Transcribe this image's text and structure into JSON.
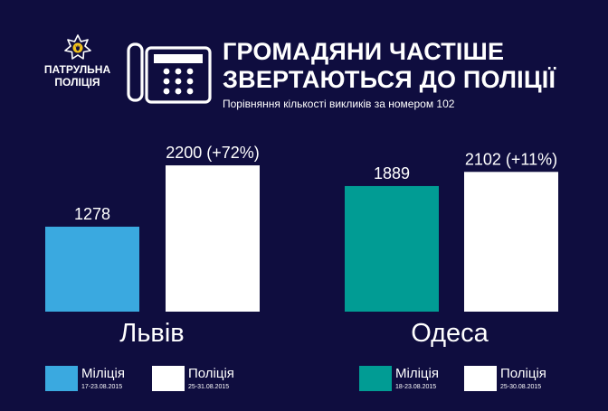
{
  "header": {
    "logo_text_line1": "ПАТРУЛЬНА",
    "logo_text_line2": "ПОЛІЦІЯ",
    "title_line1": "ГРОМАДЯНИ ЧАСТІШЕ",
    "title_line2": "ЗВЕРТАЮТЬСЯ ДО ПОЛІЦІЇ",
    "subtitle": "Порівняння кількості викликів за номером 102",
    "icon": "phone-icon"
  },
  "colors": {
    "background": "#0f0d3f",
    "militsiya_lviv": "#3aa9e0",
    "militsiya_odesa": "#019c94",
    "politsiya": "#ffffff"
  },
  "chart_data": [
    {
      "type": "bar",
      "group": "Львів",
      "categories": [
        "Міліція",
        "Поліція"
      ],
      "values": [
        1278,
        2200
      ],
      "value_labels": [
        "1278",
        "2200 (+72%)"
      ],
      "periods": [
        "17-23.08.2015",
        "25-31.08.2015"
      ],
      "colors": [
        "#3aa9e0",
        "#ffffff"
      ]
    },
    {
      "type": "bar",
      "group": "Одеса",
      "categories": [
        "Міліція",
        "Поліція"
      ],
      "values": [
        1889,
        2102
      ],
      "value_labels": [
        "1889",
        "2102 (+11%)"
      ],
      "periods": [
        "18-23.08.2015",
        "25-30.08.2015"
      ],
      "colors": [
        "#019c94",
        "#ffffff"
      ]
    }
  ]
}
